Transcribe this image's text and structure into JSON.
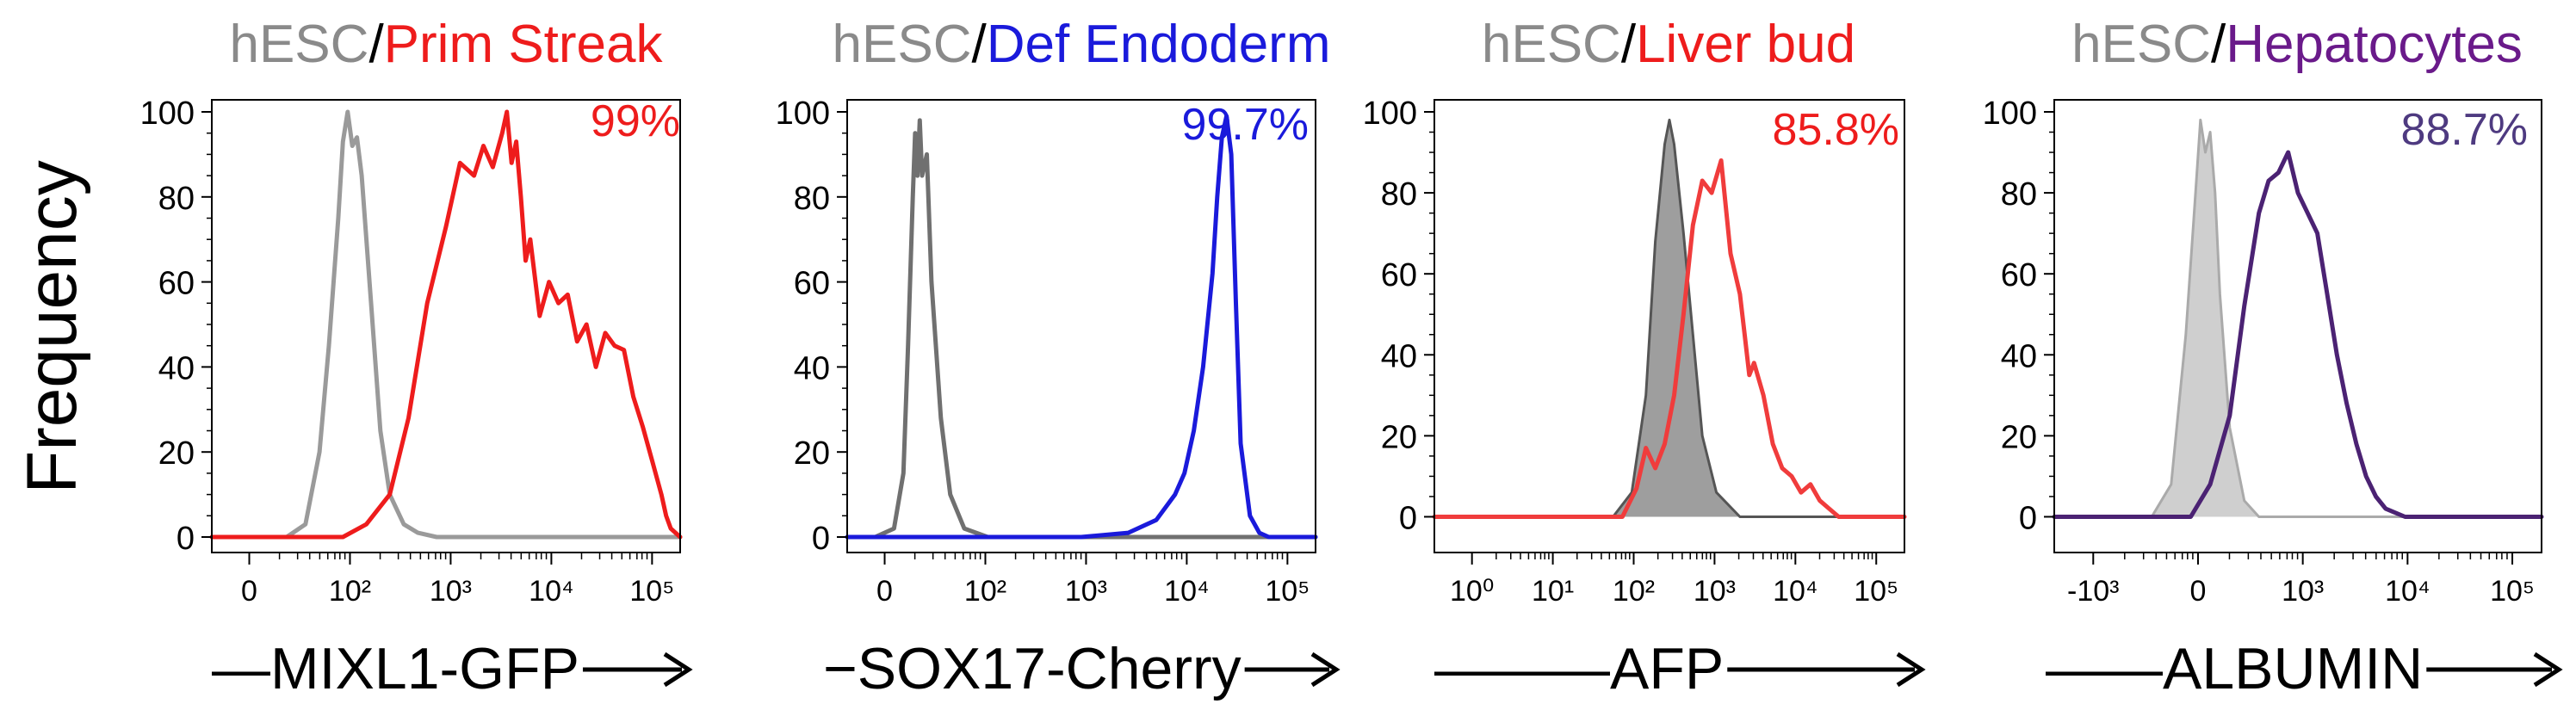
{
  "figure": {
    "ylabel": "Frequency"
  },
  "chart_data": [
    {
      "type": "line",
      "title_parts": [
        {
          "text": "hESC",
          "color": "#8a8a8a"
        },
        {
          "text": "/",
          "color": "#000000"
        },
        {
          "text": "Prim Streak",
          "color": "#ee1c1c"
        }
      ],
      "percent": "99%",
      "percent_color": "#ee1c1c",
      "xlabel": "—MIXL1-GFP",
      "yticks": [
        "0",
        "20",
        "40",
        "60",
        "80",
        "100"
      ],
      "xticks": [
        "0",
        "10²",
        "10³",
        "10⁴",
        "10⁵"
      ],
      "ylim": [
        0,
        100
      ],
      "series": [
        {
          "name": "hESC",
          "color": "#9a9a9a",
          "fill": false,
          "x": [
            0.0,
            0.08,
            0.16,
            0.2,
            0.23,
            0.25,
            0.27,
            0.28,
            0.29,
            0.3,
            0.31,
            0.32,
            0.34,
            0.36,
            0.38,
            0.41,
            0.44,
            0.48,
            0.53,
            1.0
          ],
          "y": [
            0,
            0,
            0,
            3,
            20,
            45,
            75,
            93,
            100,
            92,
            94,
            85,
            55,
            25,
            10,
            3,
            1,
            0,
            0,
            0
          ]
        },
        {
          "name": "Prim Streak",
          "color": "#ee1c1c",
          "fill": false,
          "x": [
            0.0,
            0.28,
            0.33,
            0.38,
            0.42,
            0.46,
            0.5,
            0.53,
            0.56,
            0.58,
            0.6,
            0.62,
            0.63,
            0.64,
            0.65,
            0.66,
            0.67,
            0.68,
            0.7,
            0.72,
            0.74,
            0.76,
            0.78,
            0.8,
            0.82,
            0.84,
            0.86,
            0.88,
            0.9,
            0.92,
            0.94,
            0.96,
            0.97,
            0.98,
            0.99,
            1.0
          ],
          "y": [
            0,
            0,
            3,
            10,
            28,
            55,
            73,
            88,
            85,
            92,
            87,
            95,
            100,
            88,
            93,
            80,
            65,
            70,
            52,
            60,
            55,
            57,
            46,
            50,
            40,
            48,
            45,
            44,
            33,
            26,
            18,
            10,
            5,
            2,
            1,
            0
          ]
        }
      ]
    },
    {
      "type": "line",
      "title_parts": [
        {
          "text": "hESC",
          "color": "#8a8a8a"
        },
        {
          "text": "/",
          "color": "#000000"
        },
        {
          "text": "Def Endoderm",
          "color": "#1a1adb"
        }
      ],
      "percent": "99.7%",
      "percent_color": "#1a1adb",
      "xlabel": "−SOX17-Cherry",
      "yticks": [
        "0",
        "20",
        "40",
        "60",
        "80",
        "100"
      ],
      "xticks": [
        "0",
        "10²",
        "10³",
        "10⁴",
        "10⁵"
      ],
      "ylim": [
        0,
        100
      ],
      "series": [
        {
          "name": "hESC",
          "color": "#707070",
          "fill": false,
          "x": [
            0.0,
            0.06,
            0.1,
            0.12,
            0.13,
            0.14,
            0.145,
            0.15,
            0.155,
            0.16,
            0.17,
            0.18,
            0.2,
            0.22,
            0.25,
            0.3,
            1.0
          ],
          "y": [
            0,
            0,
            2,
            15,
            45,
            80,
            95,
            85,
            98,
            85,
            90,
            60,
            28,
            10,
            2,
            0,
            0
          ]
        },
        {
          "name": "Def Endoderm",
          "color": "#1a1adb",
          "fill": false,
          "x": [
            0.0,
            0.5,
            0.6,
            0.66,
            0.7,
            0.72,
            0.74,
            0.76,
            0.78,
            0.79,
            0.8,
            0.81,
            0.82,
            0.83,
            0.84,
            0.86,
            0.88,
            0.9,
            1.0
          ],
          "y": [
            0,
            0,
            1,
            4,
            10,
            15,
            25,
            40,
            62,
            80,
            94,
            99,
            90,
            55,
            22,
            5,
            1,
            0,
            0
          ]
        }
      ]
    },
    {
      "type": "area",
      "title_parts": [
        {
          "text": "hESC",
          "color": "#8a8a8a"
        },
        {
          "text": "/",
          "color": "#000000"
        },
        {
          "text": "Liver bud",
          "color": "#ee1c1c"
        }
      ],
      "percent": "85.8%",
      "percent_color": "#ee1c1c",
      "xlabel": "———AFP",
      "yticks": [
        "0",
        "20",
        "40",
        "60",
        "80",
        "100"
      ],
      "xticks": [
        "10⁰",
        "10¹",
        "10²",
        "10³",
        "10⁴",
        "10⁵"
      ],
      "ylim": [
        -5,
        100
      ],
      "series": [
        {
          "name": "hESC",
          "color": "#555555",
          "fill": true,
          "fill_color": "#9e9e9e",
          "x": [
            0.0,
            0.38,
            0.42,
            0.45,
            0.47,
            0.49,
            0.5,
            0.51,
            0.53,
            0.55,
            0.57,
            0.6,
            0.65,
            1.0
          ],
          "y": [
            0,
            0,
            6,
            30,
            68,
            92,
            98,
            92,
            70,
            45,
            20,
            6,
            0,
            0
          ]
        },
        {
          "name": "Liver bud",
          "color": "#f03c3c",
          "fill": false,
          "x": [
            0.0,
            0.4,
            0.43,
            0.45,
            0.47,
            0.49,
            0.51,
            0.53,
            0.55,
            0.57,
            0.59,
            0.61,
            0.63,
            0.65,
            0.66,
            0.67,
            0.68,
            0.7,
            0.72,
            0.74,
            0.76,
            0.78,
            0.8,
            0.82,
            0.84,
            0.86,
            0.88,
            1.0
          ],
          "y": [
            0,
            0,
            7,
            17,
            12,
            18,
            30,
            50,
            72,
            83,
            80,
            88,
            65,
            55,
            45,
            35,
            38,
            30,
            18,
            12,
            10,
            6,
            8,
            4,
            2,
            0,
            0,
            0
          ]
        }
      ]
    },
    {
      "type": "area",
      "title_parts": [
        {
          "text": "hESC",
          "color": "#8a8a8a"
        },
        {
          "text": "/",
          "color": "#000000"
        },
        {
          "text": "Hepatocytes",
          "color": "#6a1a8a"
        }
      ],
      "percent": "88.7%",
      "percent_color": "#4e3a80",
      "xlabel": "——ALBUMIN",
      "yticks": [
        "0",
        "20",
        "40",
        "60",
        "80",
        "100"
      ],
      "xticks": [
        "-10³",
        "0",
        "10³",
        "10⁴",
        "10⁵"
      ],
      "ylim": [
        -5,
        100
      ],
      "series": [
        {
          "name": "hESC",
          "color": "#aaaaaa",
          "fill": true,
          "fill_color": "#cfcfcf",
          "x": [
            0.0,
            0.2,
            0.24,
            0.27,
            0.29,
            0.3,
            0.31,
            0.32,
            0.33,
            0.34,
            0.36,
            0.39,
            0.42,
            1.0
          ],
          "y": [
            0,
            0,
            8,
            45,
            80,
            98,
            90,
            95,
            80,
            55,
            22,
            4,
            0,
            0
          ]
        },
        {
          "name": "Hepatocytes",
          "color": "#4b2273",
          "fill": false,
          "x": [
            0.0,
            0.28,
            0.32,
            0.36,
            0.39,
            0.42,
            0.44,
            0.46,
            0.48,
            0.5,
            0.52,
            0.54,
            0.56,
            0.58,
            0.6,
            0.62,
            0.64,
            0.66,
            0.68,
            0.7,
            0.72,
            1.0
          ],
          "y": [
            0,
            0,
            8,
            25,
            52,
            75,
            83,
            85,
            90,
            80,
            75,
            70,
            55,
            40,
            28,
            18,
            10,
            5,
            2,
            1,
            0,
            0
          ]
        }
      ]
    }
  ]
}
